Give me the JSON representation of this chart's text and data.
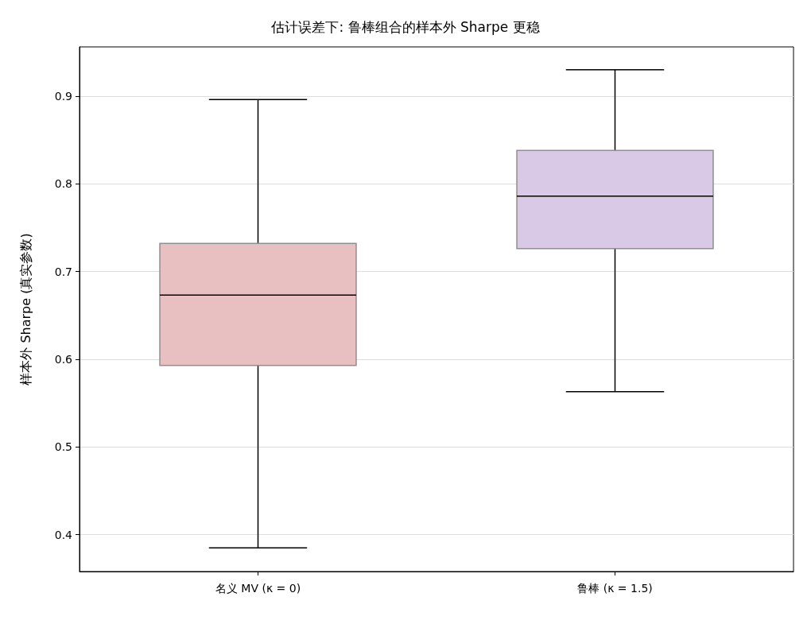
{
  "chart_data": {
    "type": "box",
    "title": "估计误差下: 鲁棒组合的样本外 Sharpe 更稳",
    "ylabel": "样本外 Sharpe (真实参数)",
    "categories": [
      "名义 MV (κ = 0)",
      "鲁棒 (κ = 1.5)"
    ],
    "boxes": [
      {
        "low": 0.385,
        "q1": 0.593,
        "median": 0.673,
        "q3": 0.732,
        "high": 0.896
      },
      {
        "low": 0.563,
        "q1": 0.726,
        "median": 0.786,
        "q3": 0.838,
        "high": 0.93
      }
    ],
    "colors": [
      "#e8c0c2",
      "#d9c9e6"
    ],
    "ylim": [
      0.358,
      0.956
    ],
    "yticks": [
      0.4,
      0.5,
      0.6,
      0.7,
      0.8,
      0.9
    ],
    "grid": "y"
  }
}
